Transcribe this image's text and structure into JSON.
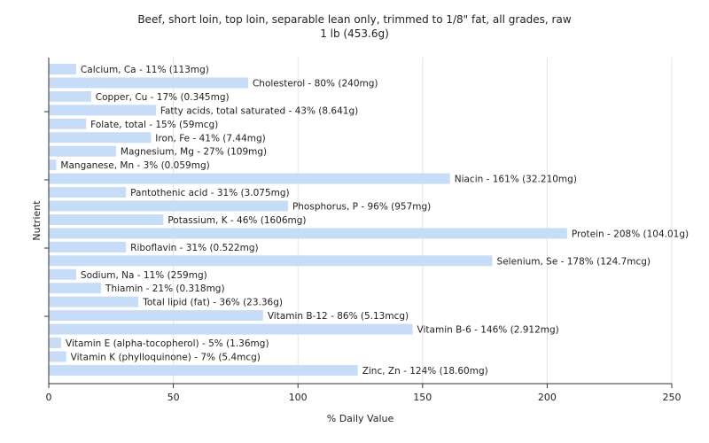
{
  "chart_data": {
    "type": "bar",
    "orientation": "horizontal",
    "title_line1": "Beef, short loin, top loin, separable lean only, trimmed to 1/8\" fat, all grades, raw",
    "title_line2": "1 lb (453.6g)",
    "xlabel": "% Daily Value",
    "ylabel": "Nutrient",
    "xlim": [
      0,
      250
    ],
    "xticks": [
      0,
      50,
      100,
      150,
      200,
      250
    ],
    "grid": "vertical",
    "bar_color": "#c6dcf7",
    "categories": [
      "Calcium, Ca",
      "Cholesterol",
      "Copper, Cu",
      "Fatty acids, total saturated",
      "Folate, total",
      "Iron, Fe",
      "Magnesium, Mg",
      "Manganese, Mn",
      "Niacin",
      "Pantothenic acid",
      "Phosphorus, P",
      "Potassium, K",
      "Protein",
      "Riboflavin",
      "Selenium, Se",
      "Sodium, Na",
      "Thiamin",
      "Total lipid (fat)",
      "Vitamin B-12",
      "Vitamin B-6",
      "Vitamin E (alpha-tocopherol)",
      "Vitamin K (phylloquinone)",
      "Zinc, Zn"
    ],
    "values": [
      11,
      80,
      17,
      43,
      15,
      41,
      27,
      3,
      161,
      31,
      96,
      46,
      208,
      31,
      178,
      11,
      21,
      36,
      86,
      146,
      5,
      7,
      124
    ],
    "labels": [
      "Calcium, Ca - 11% (113mg)",
      "Cholesterol - 80% (240mg)",
      "Copper, Cu - 17% (0.345mg)",
      "Fatty acids, total saturated - 43% (8.641g)",
      "Folate, total - 15% (59mcg)",
      "Iron, Fe - 41% (7.44mg)",
      "Magnesium, Mg - 27% (109mg)",
      "Manganese, Mn - 3% (0.059mg)",
      "Niacin - 161% (32.210mg)",
      "Pantothenic acid - 31% (3.075mg)",
      "Phosphorus, P - 96% (957mg)",
      "Potassium, K - 46% (1606mg)",
      "Protein - 208% (104.01g)",
      "Riboflavin - 31% (0.522mg)",
      "Selenium, Se - 178% (124.7mcg)",
      "Sodium, Na - 11% (259mg)",
      "Thiamin - 21% (0.318mg)",
      "Total lipid (fat) - 36% (23.36g)",
      "Vitamin B-12 - 86% (5.13mcg)",
      "Vitamin B-6 - 146% (2.912mg)",
      "Vitamin E (alpha-tocopherol) - 5% (1.36mg)",
      "Vitamin K (phylloquinone) - 7% (5.4mcg)",
      "Zinc, Zn - 124% (18.60mg)"
    ]
  }
}
